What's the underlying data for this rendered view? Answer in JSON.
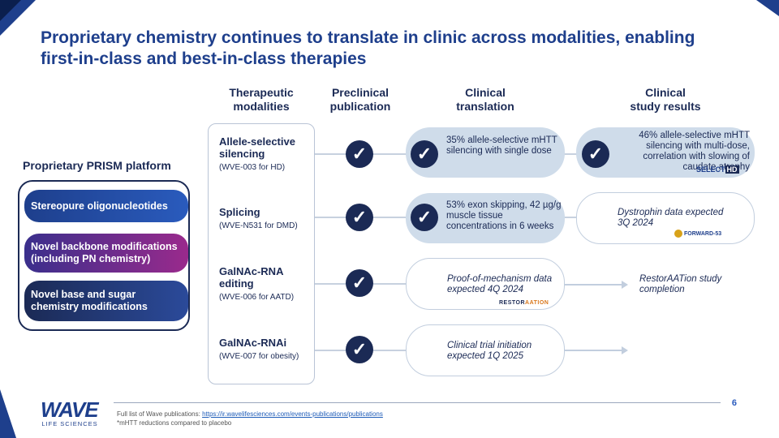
{
  "title": "Proprietary chemistry continues to translate in clinic across modalities, enabling first-in-class and best-in-class therapies",
  "columns": {
    "therapeutic": [
      "Therapeutic",
      "modalities"
    ],
    "preclinical": [
      "Preclinical",
      "publication"
    ],
    "clinical_translation": [
      "Clinical",
      "translation"
    ],
    "clinical_results": [
      "Clinical",
      "study results"
    ]
  },
  "prism": {
    "title": "Proprietary PRISM platform",
    "items": [
      "Stereopure oligonucleotides",
      "Novel backbone modifications (including PN chemistry)",
      "Novel base and sugar chemistry modifications"
    ]
  },
  "modalities": [
    {
      "name": "Allele-selective silencing",
      "code": "(WVE-003 for HD)"
    },
    {
      "name": "Splicing",
      "code": "(WVE-N531 for DMD)"
    },
    {
      "name": "GalNAc-RNA editing",
      "code": "(WVE-006 for AATD)"
    },
    {
      "name": "GalNAc-RNAi",
      "code": "(WVE-007 for obesity)"
    }
  ],
  "translation": [
    "35% allele-selective mHTT silencing with single dose",
    "53% exon skipping, 42 µg/g muscle tissue concentrations in 6 weeks",
    "Proof-of-mechanism data expected 4Q 2024",
    "Clinical trial initiation expected 1Q 2025"
  ],
  "results": [
    "46% allele-selective mHTT silencing with multi-dose, correlation with slowing of caudate atrophy",
    "Dystrophin data expected 3Q 2024",
    "RestorAATion study completion"
  ],
  "logos": {
    "select": "SELECT",
    "hd": "HD",
    "forward": "FORWARD-53",
    "restor_a": "RESTOR",
    "restor_b": "AATION"
  },
  "footer": {
    "page": "6",
    "pubs_prefix": "Full list of Wave publications: ",
    "pubs_link": "https://ir.wavelifesciences.com/events-publications/publications",
    "note": "*mHTT reductions compared to placebo",
    "brand": "WAVE",
    "brand_sub": "LIFE SCIENCES"
  },
  "colors": {
    "navy": "#1b2a55",
    "brand_blue": "#1e3f8c",
    "card_fill": "#cfdcea"
  }
}
